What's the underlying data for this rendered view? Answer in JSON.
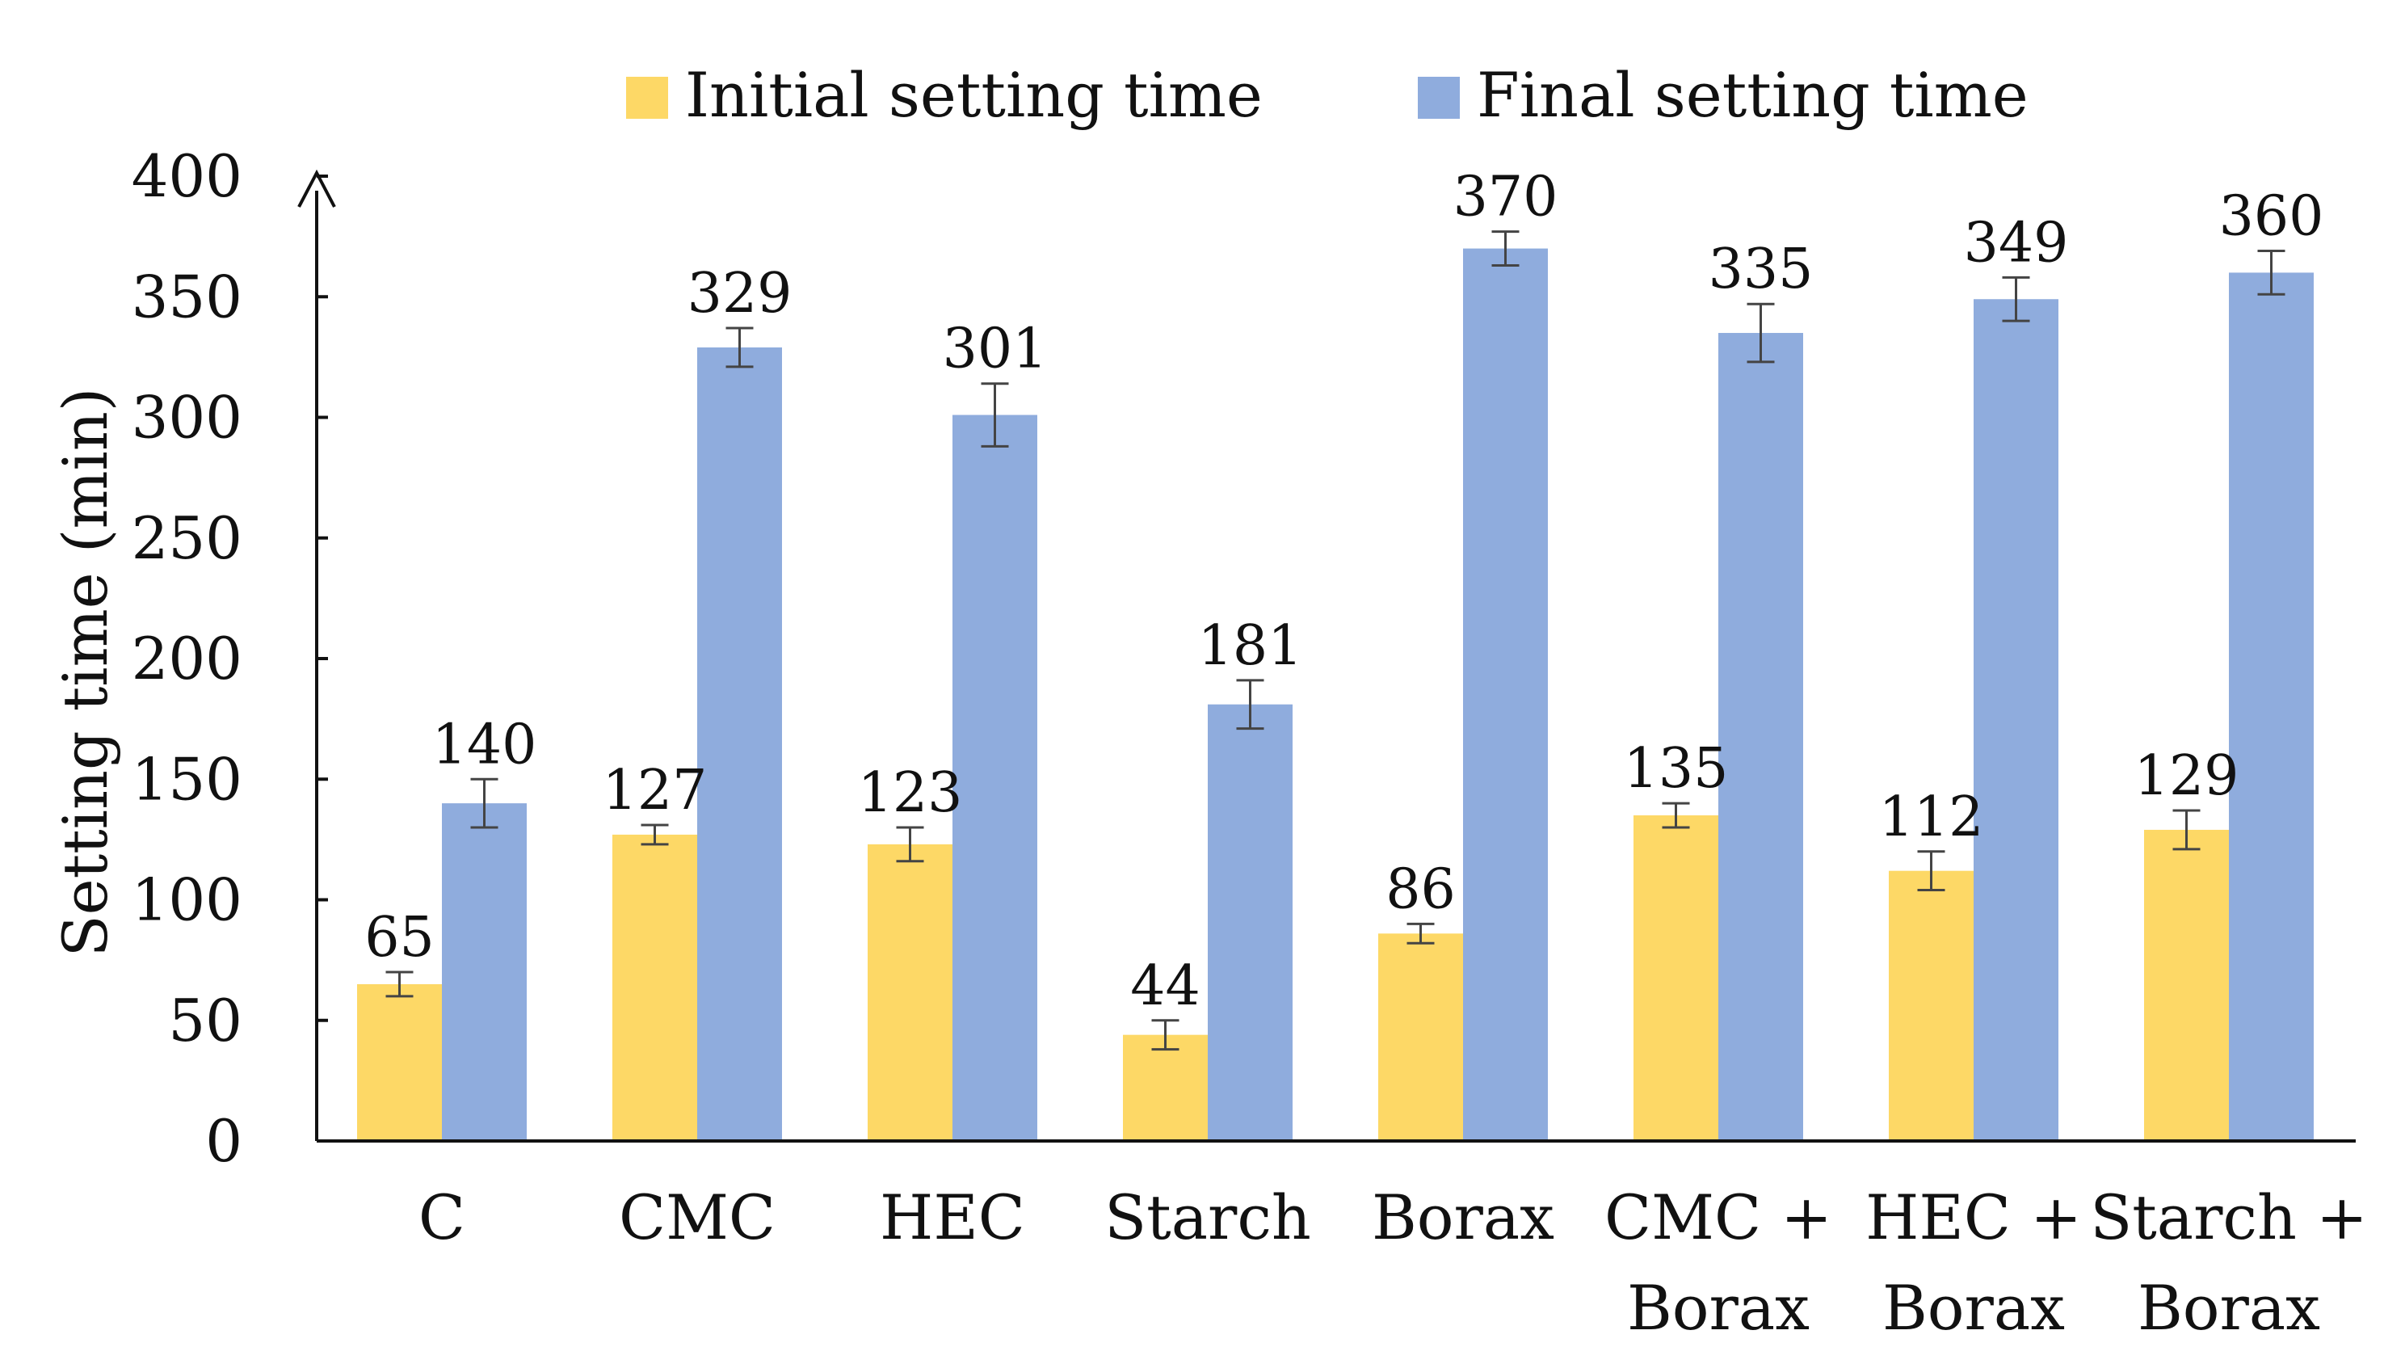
{
  "chart_data": {
    "type": "bar",
    "title": "",
    "xlabel": "",
    "ylabel": "Setting time (min)",
    "ylim": [
      0,
      400
    ],
    "yticks": [
      0,
      50,
      100,
      150,
      200,
      250,
      300,
      350,
      400
    ],
    "grid": false,
    "legend_position": "top-center",
    "categories": [
      [
        "C"
      ],
      [
        "CMC"
      ],
      [
        "HEC"
      ],
      [
        "Starch"
      ],
      [
        "Borax"
      ],
      [
        "CMC +",
        "Borax"
      ],
      [
        "HEC +",
        "Borax"
      ],
      [
        "Starch +",
        "Borax"
      ]
    ],
    "series": [
      {
        "name": "Initial setting time",
        "color": "#FDD866",
        "values": [
          65,
          127,
          123,
          44,
          86,
          135,
          112,
          129
        ],
        "errors": [
          5,
          4,
          7,
          6,
          4,
          5,
          8,
          8
        ]
      },
      {
        "name": "Final setting time",
        "color": "#8FACDD",
        "values": [
          140,
          329,
          301,
          181,
          370,
          335,
          349,
          360
        ],
        "errors": [
          10,
          8,
          13,
          10,
          7,
          12,
          9,
          9
        ]
      }
    ]
  }
}
